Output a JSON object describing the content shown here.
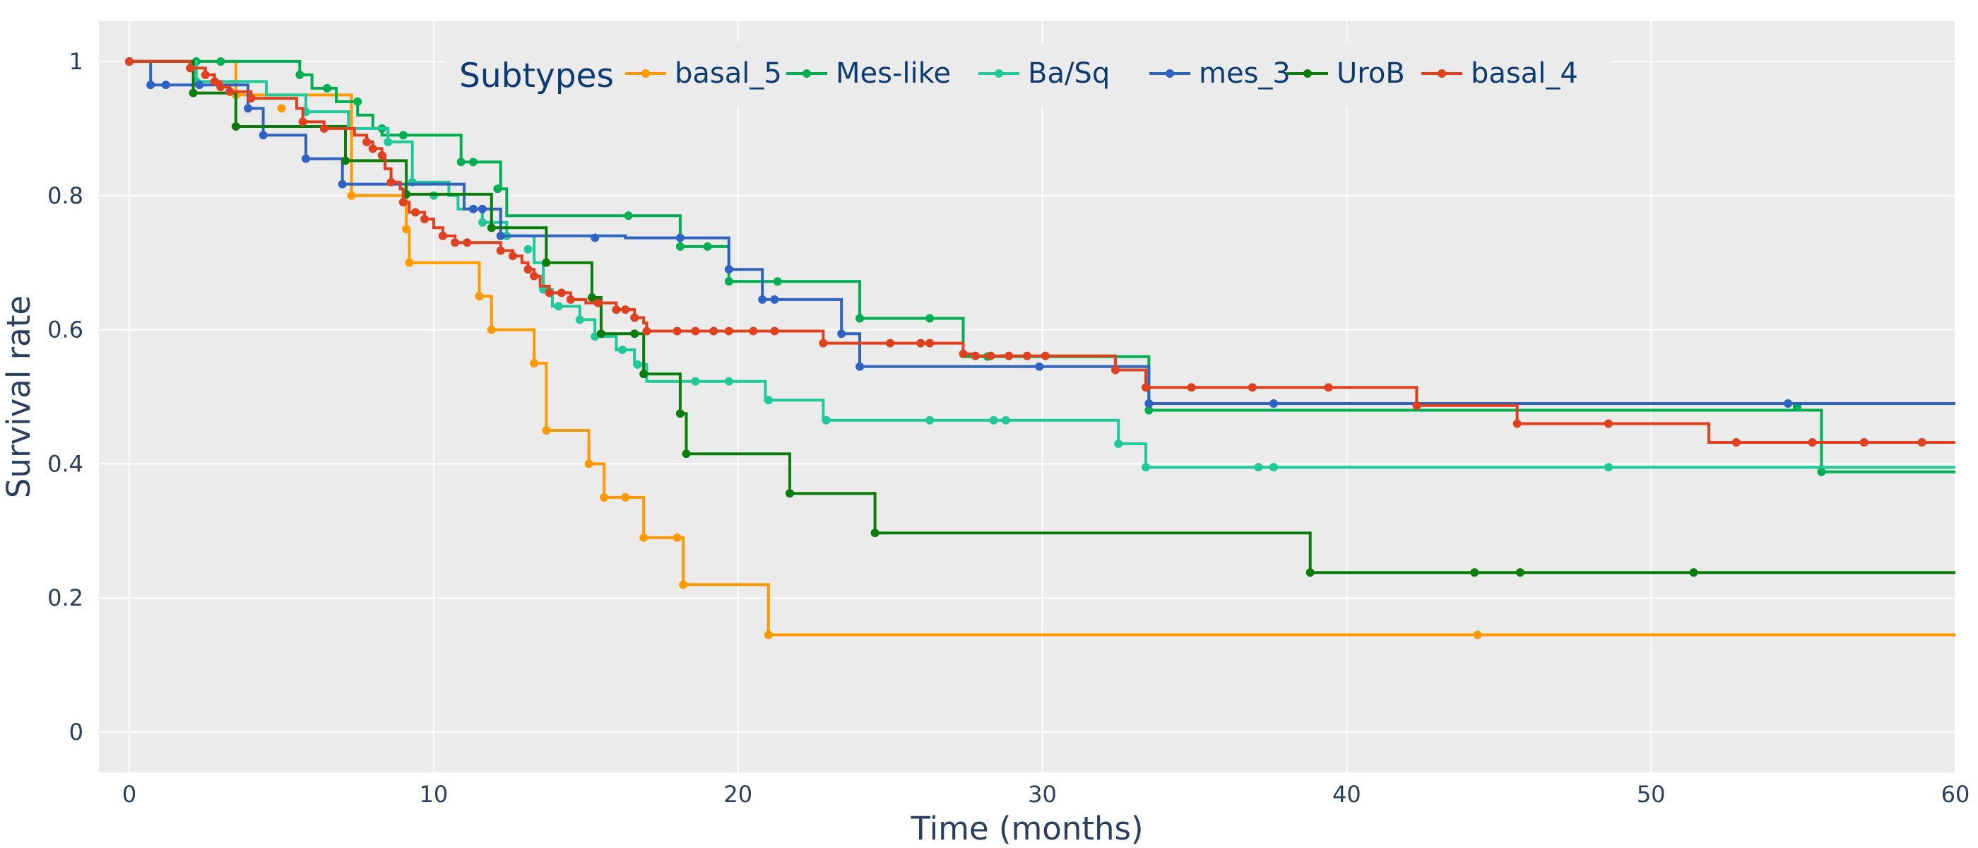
{
  "chart_data": {
    "type": "line",
    "line_shape": "step",
    "xlabel": "Time (months)",
    "ylabel": "Survival rate",
    "xlim": [
      -1,
      60
    ],
    "ylim": [
      -0.06,
      1.06
    ],
    "xticks": [
      0,
      10,
      20,
      30,
      40,
      50,
      60
    ],
    "yticks": [
      0,
      0.2,
      0.4,
      0.6,
      0.8,
      1
    ],
    "ytick_labels": [
      "0",
      "0.2",
      "0.4",
      "0.6",
      "0.8",
      "1"
    ],
    "grid": true,
    "plot_background": "#ebebeb",
    "legend": {
      "title": "Subtypes",
      "placement": "top",
      "orientation": "horizontal"
    },
    "series": [
      {
        "name": "basal_5",
        "color": "#ff9900",
        "steps": [
          [
            0,
            1
          ],
          [
            3.5,
            0.95
          ],
          [
            7.3,
            0.8
          ],
          [
            9.1,
            0.75
          ],
          [
            9.2,
            0.7
          ],
          [
            11.5,
            0.65
          ],
          [
            11.9,
            0.6
          ],
          [
            13.3,
            0.55
          ],
          [
            13.7,
            0.45
          ],
          [
            15.1,
            0.4
          ],
          [
            15.6,
            0.35
          ],
          [
            16.9,
            0.29
          ],
          [
            18.2,
            0.22
          ],
          [
            21.0,
            0.145
          ],
          [
            60,
            0.145
          ]
        ],
        "markers": [
          [
            0,
            1
          ],
          [
            3.5,
            0.95
          ],
          [
            5,
            0.93
          ],
          [
            7.3,
            0.8
          ],
          [
            9.1,
            0.75
          ],
          [
            9.2,
            0.7
          ],
          [
            11.5,
            0.65
          ],
          [
            11.9,
            0.6
          ],
          [
            13.3,
            0.55
          ],
          [
            13.7,
            0.45
          ],
          [
            15.1,
            0.4
          ],
          [
            15.6,
            0.35
          ],
          [
            16.3,
            0.35
          ],
          [
            16.9,
            0.29
          ],
          [
            18.0,
            0.29
          ],
          [
            18.2,
            0.22
          ],
          [
            21.0,
            0.145
          ],
          [
            44.3,
            0.145
          ]
        ]
      },
      {
        "name": "Mes-like",
        "color": "#00b050",
        "steps": [
          [
            0,
            1
          ],
          [
            5.6,
            0.98
          ],
          [
            6.0,
            0.96
          ],
          [
            6.8,
            0.94
          ],
          [
            7.5,
            0.92
          ],
          [
            8.0,
            0.9
          ],
          [
            8.3,
            0.89
          ],
          [
            9.2,
            0.89
          ],
          [
            10.9,
            0.85
          ],
          [
            12.2,
            0.81
          ],
          [
            12.4,
            0.77
          ],
          [
            18.1,
            0.724
          ],
          [
            19.7,
            0.672
          ],
          [
            21.3,
            0.672
          ],
          [
            24.0,
            0.617
          ],
          [
            27.4,
            0.56
          ],
          [
            28.2,
            0.56
          ],
          [
            29.5,
            0.56
          ],
          [
            33.5,
            0.48
          ],
          [
            55.6,
            0.388
          ],
          [
            60,
            0.388
          ]
        ],
        "markers": [
          [
            0,
            1
          ],
          [
            2.2,
            1
          ],
          [
            3,
            1
          ],
          [
            5.6,
            0.98
          ],
          [
            6.5,
            0.96
          ],
          [
            7.5,
            0.94
          ],
          [
            8.3,
            0.9
          ],
          [
            9.0,
            0.89
          ],
          [
            10.9,
            0.85
          ],
          [
            11.3,
            0.85
          ],
          [
            12.1,
            0.81
          ],
          [
            16.4,
            0.77
          ],
          [
            18.1,
            0.724
          ],
          [
            19.0,
            0.724
          ],
          [
            19.7,
            0.672
          ],
          [
            21.3,
            0.672
          ],
          [
            24.0,
            0.617
          ],
          [
            26.3,
            0.617
          ],
          [
            28.2,
            0.56
          ],
          [
            33.5,
            0.48
          ],
          [
            54.8,
            0.485
          ],
          [
            55.6,
            0.388
          ]
        ]
      },
      {
        "name": "Ba/Sq",
        "color": "#1ec99a",
        "steps": [
          [
            0,
            1
          ],
          [
            2.2,
            0.97
          ],
          [
            4.5,
            0.95
          ],
          [
            5.8,
            0.925
          ],
          [
            7.2,
            0.9
          ],
          [
            8.5,
            0.88
          ],
          [
            9.3,
            0.82
          ],
          [
            10.5,
            0.8
          ],
          [
            10.8,
            0.78
          ],
          [
            11.6,
            0.76
          ],
          [
            12.4,
            0.74
          ],
          [
            13.3,
            0.7
          ],
          [
            13.6,
            0.66
          ],
          [
            13.9,
            0.635
          ],
          [
            14.8,
            0.615
          ],
          [
            15.3,
            0.59
          ],
          [
            16.0,
            0.57
          ],
          [
            16.6,
            0.548
          ],
          [
            17.0,
            0.523
          ],
          [
            20.9,
            0.495
          ],
          [
            22.8,
            0.465
          ],
          [
            32.5,
            0.43
          ],
          [
            33.4,
            0.395
          ],
          [
            60,
            0.395
          ]
        ],
        "markers": [
          [
            0,
            1
          ],
          [
            2.2,
            0.97
          ],
          [
            5.8,
            0.925
          ],
          [
            8.5,
            0.88
          ],
          [
            9.3,
            0.82
          ],
          [
            10.0,
            0.8
          ],
          [
            11.6,
            0.76
          ],
          [
            12.4,
            0.74
          ],
          [
            13.1,
            0.72
          ],
          [
            13.6,
            0.66
          ],
          [
            14.1,
            0.635
          ],
          [
            14.8,
            0.615
          ],
          [
            15.3,
            0.59
          ],
          [
            16.2,
            0.57
          ],
          [
            16.7,
            0.548
          ],
          [
            18.6,
            0.523
          ],
          [
            19.7,
            0.523
          ],
          [
            21.0,
            0.495
          ],
          [
            22.9,
            0.465
          ],
          [
            26.3,
            0.465
          ],
          [
            28.4,
            0.465
          ],
          [
            28.8,
            0.465
          ],
          [
            32.5,
            0.43
          ],
          [
            33.4,
            0.395
          ],
          [
            37.1,
            0.395
          ],
          [
            37.6,
            0.395
          ],
          [
            48.6,
            0.395
          ]
        ]
      },
      {
        "name": "mes_3",
        "color": "#2e63c4",
        "steps": [
          [
            0,
            1
          ],
          [
            0.7,
            0.965
          ],
          [
            2.3,
            0.965
          ],
          [
            3.9,
            0.93
          ],
          [
            4.4,
            0.89
          ],
          [
            5.8,
            0.855
          ],
          [
            7.0,
            0.817
          ],
          [
            9.2,
            0.817
          ],
          [
            11.0,
            0.78
          ],
          [
            12.2,
            0.74
          ],
          [
            16.3,
            0.737
          ],
          [
            19.7,
            0.69
          ],
          [
            20.8,
            0.645
          ],
          [
            23.4,
            0.594
          ],
          [
            24.0,
            0.545
          ],
          [
            33.5,
            0.49
          ],
          [
            60,
            0.49
          ]
        ],
        "markers": [
          [
            0,
            1
          ],
          [
            0.7,
            0.965
          ],
          [
            1.2,
            0.965
          ],
          [
            2.3,
            0.965
          ],
          [
            3.9,
            0.93
          ],
          [
            4.4,
            0.89
          ],
          [
            5.8,
            0.855
          ],
          [
            7.0,
            0.817
          ],
          [
            11.3,
            0.78
          ],
          [
            11.6,
            0.78
          ],
          [
            12.2,
            0.74
          ],
          [
            15.3,
            0.737
          ],
          [
            18.1,
            0.737
          ],
          [
            19.7,
            0.69
          ],
          [
            20.8,
            0.645
          ],
          [
            21.2,
            0.645
          ],
          [
            23.4,
            0.594
          ],
          [
            24.0,
            0.545
          ],
          [
            29.9,
            0.545
          ],
          [
            33.5,
            0.49
          ],
          [
            37.6,
            0.49
          ],
          [
            54.5,
            0.49
          ]
        ]
      },
      {
        "name": "UroB",
        "color": "#0a7d0a",
        "steps": [
          [
            0,
            1
          ],
          [
            2.1,
            0.953
          ],
          [
            3.5,
            0.903
          ],
          [
            7.1,
            0.852
          ],
          [
            9.1,
            0.802
          ],
          [
            11.9,
            0.752
          ],
          [
            13.7,
            0.7
          ],
          [
            15.2,
            0.648
          ],
          [
            15.5,
            0.594
          ],
          [
            16.9,
            0.534
          ],
          [
            18.1,
            0.475
          ],
          [
            18.3,
            0.415
          ],
          [
            21.7,
            0.356
          ],
          [
            24.5,
            0.297
          ],
          [
            38.8,
            0.238
          ],
          [
            60,
            0.238
          ]
        ],
        "markers": [
          [
            0,
            1
          ],
          [
            2.1,
            0.953
          ],
          [
            3.5,
            0.903
          ],
          [
            7.1,
            0.852
          ],
          [
            9.1,
            0.802
          ],
          [
            11.9,
            0.752
          ],
          [
            13.7,
            0.7
          ],
          [
            15.2,
            0.648
          ],
          [
            15.5,
            0.594
          ],
          [
            16.6,
            0.594
          ],
          [
            16.9,
            0.534
          ],
          [
            18.1,
            0.475
          ],
          [
            18.3,
            0.415
          ],
          [
            21.7,
            0.356
          ],
          [
            24.5,
            0.297
          ],
          [
            38.8,
            0.238
          ],
          [
            44.2,
            0.238
          ],
          [
            45.7,
            0.238
          ],
          [
            51.4,
            0.238
          ]
        ]
      },
      {
        "name": "basal_4",
        "color": "#e0401e",
        "steps": [
          [
            0,
            1
          ],
          [
            2.0,
            0.99
          ],
          [
            2.5,
            0.98
          ],
          [
            2.8,
            0.97
          ],
          [
            3.0,
            0.962
          ],
          [
            3.3,
            0.955
          ],
          [
            4.0,
            0.945
          ],
          [
            5.5,
            0.93
          ],
          [
            5.7,
            0.91
          ],
          [
            6.4,
            0.9
          ],
          [
            7.4,
            0.89
          ],
          [
            7.8,
            0.88
          ],
          [
            8.0,
            0.87
          ],
          [
            8.3,
            0.86
          ],
          [
            8.4,
            0.84
          ],
          [
            8.6,
            0.82
          ],
          [
            8.9,
            0.81
          ],
          [
            9.0,
            0.79
          ],
          [
            9.2,
            0.775
          ],
          [
            9.7,
            0.765
          ],
          [
            10.0,
            0.752
          ],
          [
            10.3,
            0.74
          ],
          [
            10.7,
            0.73
          ],
          [
            12.2,
            0.718
          ],
          [
            12.6,
            0.71
          ],
          [
            12.9,
            0.7
          ],
          [
            13.1,
            0.69
          ],
          [
            13.3,
            0.68
          ],
          [
            13.5,
            0.665
          ],
          [
            13.8,
            0.655
          ],
          [
            14.5,
            0.645
          ],
          [
            15.0,
            0.64
          ],
          [
            16.0,
            0.63
          ],
          [
            16.6,
            0.618
          ],
          [
            16.9,
            0.61
          ],
          [
            17.0,
            0.598
          ],
          [
            22.8,
            0.58
          ],
          [
            27.4,
            0.564
          ],
          [
            27.8,
            0.561
          ],
          [
            32.4,
            0.54
          ],
          [
            33.4,
            0.514
          ],
          [
            42.3,
            0.487
          ],
          [
            45.6,
            0.46
          ],
          [
            51.9,
            0.432
          ],
          [
            60,
            0.432
          ]
        ],
        "markers": [
          [
            0,
            1
          ],
          [
            2.0,
            0.99
          ],
          [
            2.5,
            0.98
          ],
          [
            2.8,
            0.97
          ],
          [
            3.0,
            0.962
          ],
          [
            3.3,
            0.955
          ],
          [
            4.0,
            0.945
          ],
          [
            5.7,
            0.91
          ],
          [
            6.4,
            0.9
          ],
          [
            7.8,
            0.88
          ],
          [
            8.0,
            0.87
          ],
          [
            8.3,
            0.86
          ],
          [
            8.6,
            0.82
          ],
          [
            9.0,
            0.79
          ],
          [
            9.4,
            0.775
          ],
          [
            9.7,
            0.765
          ],
          [
            10.3,
            0.74
          ],
          [
            10.7,
            0.73
          ],
          [
            11.1,
            0.73
          ],
          [
            12.2,
            0.718
          ],
          [
            12.6,
            0.71
          ],
          [
            13.1,
            0.69
          ],
          [
            13.3,
            0.68
          ],
          [
            13.8,
            0.655
          ],
          [
            14.2,
            0.655
          ],
          [
            14.5,
            0.645
          ],
          [
            15.4,
            0.64
          ],
          [
            16.0,
            0.63
          ],
          [
            16.3,
            0.63
          ],
          [
            16.6,
            0.618
          ],
          [
            17.0,
            0.598
          ],
          [
            18.0,
            0.598
          ],
          [
            18.6,
            0.598
          ],
          [
            19.2,
            0.598
          ],
          [
            19.7,
            0.598
          ],
          [
            20.5,
            0.598
          ],
          [
            21.2,
            0.598
          ],
          [
            22.8,
            0.58
          ],
          [
            25.0,
            0.58
          ],
          [
            26.0,
            0.58
          ],
          [
            26.3,
            0.58
          ],
          [
            27.4,
            0.564
          ],
          [
            27.8,
            0.561
          ],
          [
            28.3,
            0.561
          ],
          [
            28.9,
            0.561
          ],
          [
            29.5,
            0.561
          ],
          [
            30.1,
            0.561
          ],
          [
            32.4,
            0.54
          ],
          [
            33.4,
            0.514
          ],
          [
            34.9,
            0.514
          ],
          [
            36.9,
            0.514
          ],
          [
            39.4,
            0.514
          ],
          [
            42.3,
            0.487
          ],
          [
            45.6,
            0.46
          ],
          [
            48.6,
            0.46
          ],
          [
            52.8,
            0.432
          ],
          [
            55.3,
            0.432
          ],
          [
            57.0,
            0.432
          ],
          [
            58.9,
            0.432
          ]
        ]
      }
    ]
  }
}
